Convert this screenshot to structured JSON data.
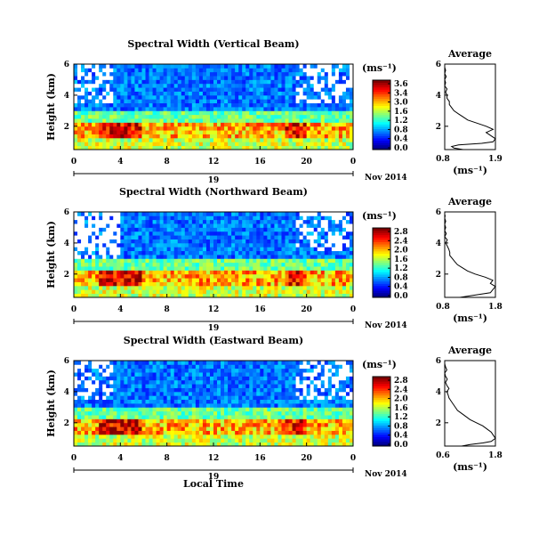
{
  "chart_data": {
    "type": "heatmap",
    "panels": [
      {
        "title": "Spectral Width (Vertical Beam)",
        "avg_title": "Average",
        "avg_xticks": [
          "0.8",
          "1.9"
        ],
        "avg_xrange": [
          0.8,
          1.9
        ],
        "cbar_ticks": [
          "3.6",
          "3.4",
          "3.0",
          "1.6",
          "1.2",
          "0.8",
          "0.4",
          "0.0"
        ],
        "avg_profile": [
          [
            1.2,
            0.5
          ],
          [
            1.0,
            0.6
          ],
          [
            0.95,
            0.7
          ],
          [
            1.1,
            0.8
          ],
          [
            1.6,
            0.9
          ],
          [
            1.85,
            1.0
          ],
          [
            1.9,
            1.2
          ],
          [
            1.8,
            1.4
          ],
          [
            1.7,
            1.6
          ],
          [
            1.85,
            1.8
          ],
          [
            1.7,
            2.0
          ],
          [
            1.5,
            2.2
          ],
          [
            1.3,
            2.4
          ],
          [
            1.2,
            2.6
          ],
          [
            1.1,
            2.8
          ],
          [
            1.0,
            3.0
          ],
          [
            0.95,
            3.2
          ],
          [
            0.9,
            3.4
          ],
          [
            0.9,
            3.6
          ],
          [
            0.85,
            3.8
          ],
          [
            0.85,
            4.0
          ],
          [
            0.82,
            4.2
          ],
          [
            0.85,
            4.4
          ],
          [
            0.8,
            4.6
          ],
          [
            0.82,
            4.8
          ],
          [
            0.8,
            5.0
          ],
          [
            0.83,
            5.2
          ],
          [
            0.8,
            5.4
          ],
          [
            0.82,
            5.6
          ],
          [
            0.8,
            5.8
          ]
        ]
      },
      {
        "title": "Spectral Width (Northward Beam)",
        "avg_title": "Average",
        "avg_xticks": [
          "0.8",
          "1.8"
        ],
        "avg_xrange": [
          0.8,
          1.8
        ],
        "cbar_ticks": [
          "2.8",
          "2.4",
          "2.0",
          "1.6",
          "1.2",
          "0.8",
          "0.4",
          "0.0"
        ],
        "avg_profile": [
          [
            1.1,
            0.5
          ],
          [
            1.3,
            0.6
          ],
          [
            1.5,
            0.7
          ],
          [
            1.7,
            0.8
          ],
          [
            1.75,
            1.0
          ],
          [
            1.8,
            1.2
          ],
          [
            1.7,
            1.4
          ],
          [
            1.75,
            1.6
          ],
          [
            1.6,
            1.8
          ],
          [
            1.4,
            2.0
          ],
          [
            1.25,
            2.2
          ],
          [
            1.15,
            2.4
          ],
          [
            1.05,
            2.6
          ],
          [
            1.0,
            2.8
          ],
          [
            0.95,
            3.0
          ],
          [
            0.9,
            3.2
          ],
          [
            0.9,
            3.4
          ],
          [
            0.88,
            3.6
          ],
          [
            0.85,
            3.8
          ],
          [
            0.82,
            4.0
          ],
          [
            0.85,
            4.2
          ],
          [
            0.8,
            4.4
          ],
          [
            0.83,
            4.6
          ],
          [
            0.8,
            4.8
          ],
          [
            0.82,
            5.0
          ],
          [
            0.8,
            5.2
          ],
          [
            0.82,
            5.4
          ],
          [
            0.8,
            5.6
          ],
          [
            0.81,
            5.8
          ]
        ]
      },
      {
        "title": "Spectral Width (Eastward Beam)",
        "avg_title": "Average",
        "avg_xticks": [
          "0.6",
          "1.8"
        ],
        "avg_xrange": [
          0.6,
          1.8
        ],
        "cbar_ticks": [
          "2.8",
          "2.4",
          "2.0",
          "1.6",
          "1.2",
          "0.8",
          "0.4",
          "0.0"
        ],
        "avg_profile": [
          [
            1.0,
            0.5
          ],
          [
            1.2,
            0.6
          ],
          [
            1.5,
            0.7
          ],
          [
            1.7,
            0.8
          ],
          [
            1.8,
            1.0
          ],
          [
            1.75,
            1.2
          ],
          [
            1.7,
            1.4
          ],
          [
            1.6,
            1.6
          ],
          [
            1.5,
            1.8
          ],
          [
            1.35,
            2.0
          ],
          [
            1.2,
            2.2
          ],
          [
            1.1,
            2.4
          ],
          [
            1.0,
            2.6
          ],
          [
            0.9,
            2.8
          ],
          [
            0.85,
            3.0
          ],
          [
            0.8,
            3.2
          ],
          [
            0.75,
            3.4
          ],
          [
            0.7,
            3.6
          ],
          [
            0.68,
            3.8
          ],
          [
            0.65,
            4.0
          ],
          [
            0.7,
            4.2
          ],
          [
            0.65,
            4.4
          ],
          [
            0.62,
            4.6
          ],
          [
            0.66,
            4.8
          ],
          [
            0.62,
            5.0
          ],
          [
            0.6,
            5.2
          ],
          [
            0.65,
            5.4
          ],
          [
            0.62,
            5.6
          ],
          [
            0.6,
            5.8
          ]
        ]
      }
    ],
    "yticks": [
      "2",
      "4",
      "6"
    ],
    "yrange_km": [
      0.5,
      6
    ],
    "xticks": [
      "0",
      "4",
      "8",
      "12",
      "16",
      "20",
      "0"
    ],
    "xrange_hours": [
      0,
      24
    ],
    "date_tick": "19",
    "date_label": "Nov 2014",
    "ylabel": "Height (km)",
    "cbar_unit": "(ms⁻¹)",
    "avg_xlabel": "(ms⁻¹)",
    "xlabel": "Local Time"
  }
}
